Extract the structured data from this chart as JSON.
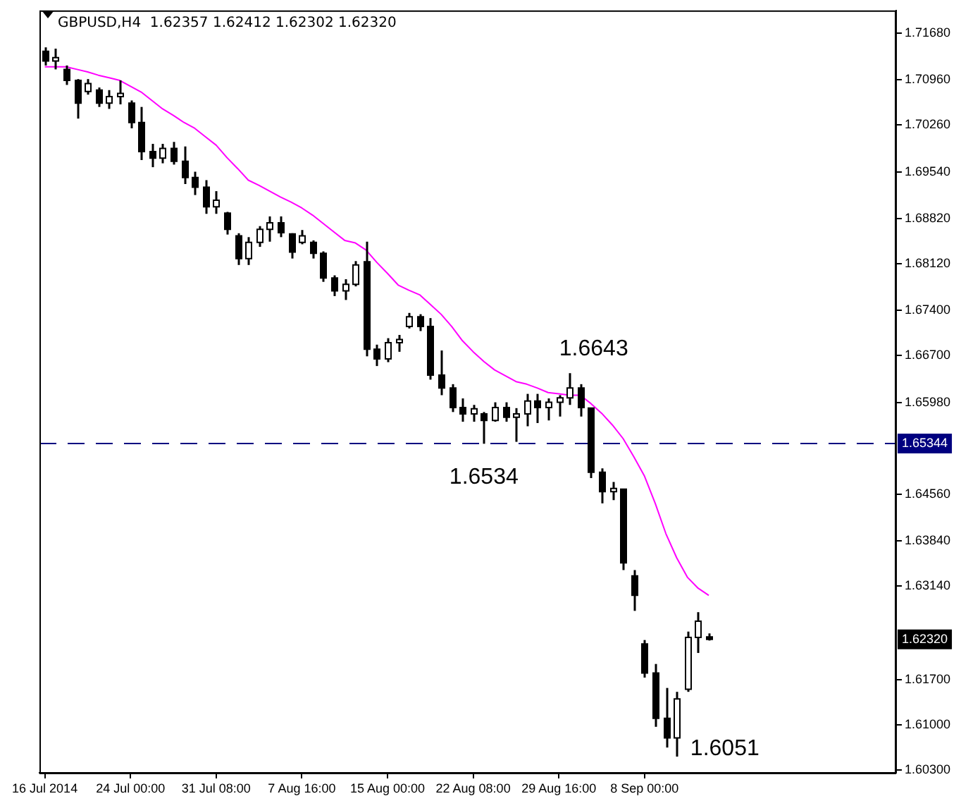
{
  "chart_data": {
    "type": "candlestick",
    "title": "GBPUSD,H4  1.62357 1.62412 1.62302 1.62320",
    "colors": [
      "#000000",
      "#ffffff",
      "#000000",
      "#000000",
      "#ffffff",
      "#000000",
      "#ffffff",
      "#ffffff",
      "#000000",
      "#000000",
      "#000000",
      "#ffffff",
      "#000000",
      "#000000",
      "#000000",
      "#000000",
      "#ffffff",
      "#000000",
      "#000000",
      "#ffffff",
      "#ffffff",
      "#ffffff",
      "#000000",
      "#000000",
      "#ffffff",
      "#000000",
      "#000000",
      "#000000",
      "#ffffff",
      "#ffffff",
      "#000000",
      "#000000",
      "#ffffff",
      "#ffffff",
      "#ffffff",
      "#000000",
      "#000000",
      "#000000",
      "#000000",
      "#000000",
      "#ffffff",
      "#000000",
      "#ffffff",
      "#000000",
      "#ffffff",
      "#ffffff",
      "#000000",
      "#ffffff",
      "#ffffff",
      "#ffffff",
      "#000000",
      "#000000",
      "#000000",
      "#ffffff",
      "#000000",
      "#000000",
      "#000000",
      "#000000",
      "#000000",
      "#ffffff",
      "#ffffff",
      "#ffffff",
      "#000000",
      null,
      null,
      null,
      null,
      null,
      null,
      null,
      null,
      null,
      null,
      null,
      null,
      null,
      null,
      null,
      null,
      null
    ],
    "categories": [
      "16 Jul 2014",
      null,
      null,
      null,
      null,
      null,
      null,
      null,
      "24 Jul 00:00",
      null,
      null,
      null,
      null,
      null,
      null,
      null,
      "31 Jul 08:00",
      null,
      null,
      null,
      null,
      null,
      null,
      null,
      "7 Aug 16:00",
      null,
      null,
      null,
      null,
      null,
      null,
      null,
      "15 Aug 00:00",
      null,
      null,
      null,
      null,
      null,
      null,
      null,
      "22 Aug 08:00",
      null,
      null,
      null,
      null,
      null,
      null,
      null,
      "29 Aug 16:00",
      null,
      null,
      null,
      null,
      null,
      null,
      null,
      "8 Sep 00:00",
      null,
      null,
      null,
      null,
      null,
      null,
      null,
      null,
      null,
      null,
      null,
      null,
      null,
      null,
      null,
      null,
      null,
      null,
      null,
      null,
      null,
      null,
      null
    ],
    "ohlc": [
      [
        1.714,
        1.7146,
        1.7118,
        1.7125
      ],
      [
        1.7125,
        1.7144,
        1.7112,
        1.713
      ],
      [
        1.7112,
        1.7118,
        1.7088,
        1.7095
      ],
      [
        1.7095,
        1.7097,
        1.7036,
        1.706
      ],
      [
        1.7078,
        1.7097,
        1.7073,
        1.709
      ],
      [
        1.708,
        1.7084,
        1.7054,
        1.706
      ],
      [
        1.706,
        1.708,
        1.7051,
        1.707
      ],
      [
        1.707,
        1.7095,
        1.7058,
        1.7075
      ],
      [
        1.706,
        1.7064,
        1.7021,
        1.703
      ],
      [
        1.703,
        1.7054,
        1.6972,
        1.6985
      ],
      [
        1.6985,
        1.6997,
        1.6961,
        1.6975
      ],
      [
        1.6975,
        1.6997,
        1.6967,
        1.699
      ],
      [
        1.699,
        1.7,
        1.6965,
        1.697
      ],
      [
        1.697,
        1.6993,
        1.6935,
        1.6945
      ],
      [
        1.6945,
        1.6954,
        1.6918,
        1.693
      ],
      [
        1.693,
        1.6941,
        1.6889,
        1.69
      ],
      [
        1.69,
        1.6924,
        1.6889,
        1.691
      ],
      [
        1.689,
        1.6892,
        1.6857,
        1.6865
      ],
      [
        1.6855,
        1.6859,
        1.681,
        1.682
      ],
      [
        1.682,
        1.6853,
        1.681,
        1.6845
      ],
      [
        1.6845,
        1.687,
        1.6838,
        1.6865
      ],
      [
        1.6865,
        1.6885,
        1.6846,
        1.6875
      ],
      [
        1.6875,
        1.6885,
        1.6853,
        1.686
      ],
      [
        1.6858,
        1.6859,
        1.682,
        1.683
      ],
      [
        1.6845,
        1.6864,
        1.6842,
        1.6855
      ],
      [
        1.6845,
        1.6848,
        1.682,
        1.6828
      ],
      [
        1.6828,
        1.6831,
        1.6784,
        1.679
      ],
      [
        1.679,
        1.6794,
        1.6762,
        1.677
      ],
      [
        1.677,
        1.6788,
        1.6756,
        1.678
      ],
      [
        1.678,
        1.6816,
        1.6777,
        1.681
      ],
      [
        1.6815,
        1.6846,
        1.6669,
        1.668
      ],
      [
        1.668,
        1.6687,
        1.6654,
        1.6665
      ],
      [
        1.6665,
        1.6697,
        1.666,
        1.669
      ],
      [
        1.669,
        1.6702,
        1.6676,
        1.6695
      ],
      [
        1.6715,
        1.6736,
        1.6712,
        1.673
      ],
      [
        1.673,
        1.6734,
        1.6708,
        1.6715
      ],
      [
        1.6715,
        1.6728,
        1.6633,
        1.664
      ],
      [
        1.664,
        1.6678,
        1.6609,
        1.662
      ],
      [
        1.662,
        1.6626,
        1.6583,
        1.659
      ],
      [
        1.659,
        1.6604,
        1.6568,
        1.658
      ],
      [
        1.658,
        1.6594,
        1.6568,
        1.6588
      ],
      [
        1.658,
        1.6583,
        1.6534,
        1.657
      ],
      [
        1.657,
        1.6598,
        1.6568,
        1.659
      ],
      [
        1.659,
        1.6598,
        1.6568,
        1.6575
      ],
      [
        1.6575,
        1.6589,
        1.6537,
        1.658
      ],
      [
        1.658,
        1.6611,
        1.6561,
        1.66
      ],
      [
        1.66,
        1.6611,
        1.6566,
        1.659
      ],
      [
        1.659,
        1.6604,
        1.657,
        1.6598
      ],
      [
        1.6598,
        1.6609,
        1.6576,
        1.6605
      ],
      [
        1.6605,
        1.6643,
        1.6594,
        1.662
      ],
      [
        1.662,
        1.6626,
        1.6576,
        1.659
      ],
      [
        1.6589,
        1.6589,
        1.6481,
        1.649
      ],
      [
        1.649,
        1.6496,
        1.6442,
        1.646
      ],
      [
        1.646,
        1.6475,
        1.6447,
        1.6465
      ],
      [
        1.6464,
        1.6464,
        1.6339,
        1.635
      ],
      [
        1.633,
        1.6339,
        1.6276,
        1.63
      ],
      [
        1.6225,
        1.6231,
        1.6173,
        1.618
      ],
      [
        1.618,
        1.6194,
        1.6097,
        1.611
      ],
      [
        1.611,
        1.6157,
        1.6065,
        1.608
      ],
      [
        1.608,
        1.6151,
        1.6051,
        1.614
      ],
      [
        1.6155,
        1.6244,
        1.6151,
        1.6235
      ],
      [
        1.6235,
        1.6274,
        1.6211,
        1.626
      ],
      [
        1.62357,
        1.62412,
        1.62302,
        1.6232
      ],
      null,
      null,
      null,
      null,
      null,
      null,
      null,
      null,
      null,
      null,
      null,
      null,
      null,
      null,
      null,
      null,
      null
    ],
    "series": [
      {
        "type": "line",
        "color": "#ff00ff",
        "values": [
          1.7116,
          1.7116,
          1.7116,
          1.7112,
          1.7108,
          1.7103,
          1.7099,
          1.7095,
          1.7086,
          1.7077,
          1.7064,
          1.7051,
          1.7041,
          1.703,
          1.7021,
          1.7008,
          1.6995,
          1.6976,
          1.6959,
          1.6941,
          1.6933,
          1.6924,
          1.6915,
          1.6907,
          1.6898,
          1.6887,
          1.6874,
          1.6861,
          1.6848,
          1.6844,
          1.6833,
          1.6814,
          1.6797,
          1.6779,
          1.6771,
          1.6764,
          1.6749,
          1.6734,
          1.6715,
          1.6693,
          1.6676,
          1.6661,
          1.6648,
          1.6639,
          1.663,
          1.6626,
          1.662,
          1.6613,
          1.6611,
          1.6609,
          1.6609,
          1.6596,
          1.6581,
          1.6563,
          1.6542,
          1.6514,
          1.6484,
          1.6442,
          1.6395,
          1.6358,
          1.6328,
          1.6311,
          1.63,
          null,
          null,
          null,
          null,
          null,
          null,
          null,
          null,
          null,
          null,
          null,
          null,
          null,
          null,
          null,
          null,
          null
        ]
      }
    ],
    "ylim": [
      1.6026,
      1.7203
    ],
    "yticks": [
      {
        "value": 1.7168,
        "label": "1.71680"
      },
      {
        "value": 1.7096,
        "label": "1.70960"
      },
      {
        "value": 1.7026,
        "label": "1.70260"
      },
      {
        "value": 1.6954,
        "label": "1.69540"
      },
      {
        "value": 1.6882,
        "label": "1.68820"
      },
      {
        "value": 1.6812,
        "label": "1.68120"
      },
      {
        "value": 1.674,
        "label": "1.67400"
      },
      {
        "value": 1.667,
        "label": "1.66700"
      },
      {
        "value": 1.6598,
        "label": "1.65980"
      },
      {
        "value": 1.6456,
        "label": "1.64560"
      },
      {
        "value": 1.6384,
        "label": "1.63840"
      },
      {
        "value": 1.6314,
        "label": "1.63140"
      },
      {
        "value": 1.617,
        "label": "1.61700"
      },
      {
        "value": 1.61,
        "label": "1.61000"
      },
      {
        "value": 1.603,
        "label": "1.60300"
      }
    ],
    "ref_lines": [
      {
        "axis": "y",
        "value": 1.65344,
        "label": "1.65344",
        "color": "#000080",
        "line_style": "dashed"
      }
    ],
    "annotations": [
      "1.6643",
      {
        "text": "1.6534",
        "y": 1.6534
      },
      "1.6051",
      {
        "text": "1.62320",
        "y": 1.6232
      }
    ],
    "grid": false,
    "legend": false
  }
}
